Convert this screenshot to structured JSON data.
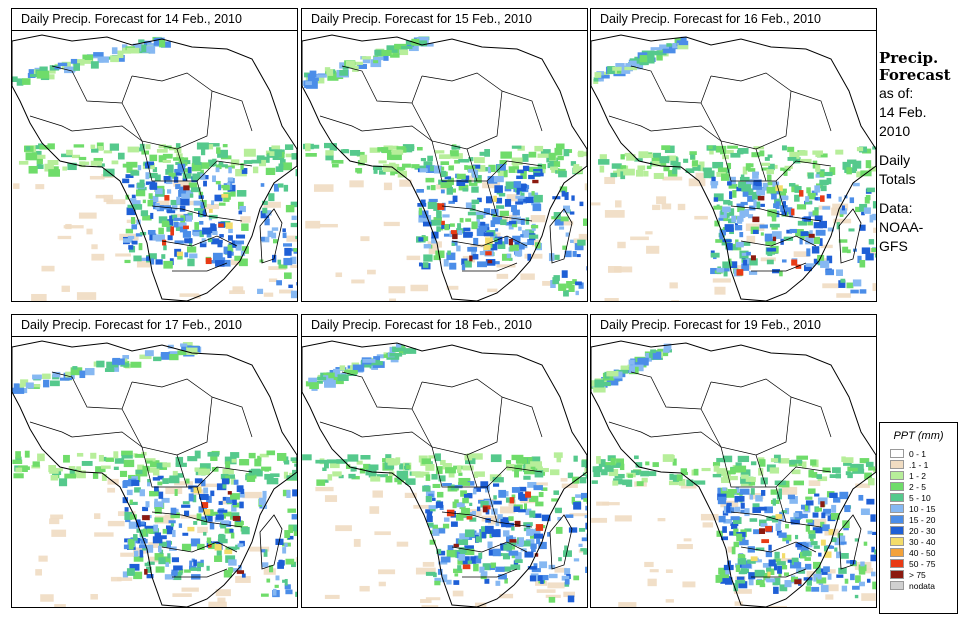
{
  "panels": [
    {
      "title": "Daily Precip. Forecast for  14 Feb., 2010"
    },
    {
      "title": "Daily Precip. Forecast for  15 Feb., 2010"
    },
    {
      "title": "Daily Precip. Forecast for  16 Feb., 2010"
    },
    {
      "title": "Daily Precip. Forecast for  17 Feb., 2010"
    },
    {
      "title": "Daily Precip. Forecast for  18 Feb., 2010"
    },
    {
      "title": "Daily Precip. Forecast for  19 Feb., 2010"
    }
  ],
  "sidebar": {
    "heading_line1": "Precip.",
    "heading_line2": "Forecast",
    "asof_label": "as of:",
    "date_line1": "14 Feb.",
    "date_line2": "2010",
    "totals_line1": "Daily",
    "totals_line2": "Totals",
    "data_label": "Data:",
    "source_line1": "NOAA-",
    "source_line2": "GFS"
  },
  "legend": {
    "title": "PPT (mm)",
    "items": [
      {
        "label": "0 - 1",
        "color": "#ffffff"
      },
      {
        "label": ".1 - 1",
        "color": "#f0dcc2"
      },
      {
        "label": "1 - 2",
        "color": "#b7ee9a"
      },
      {
        "label": "2 - 5",
        "color": "#6fdc6a"
      },
      {
        "label": "5 - 10",
        "color": "#55c98c"
      },
      {
        "label": "10 - 15",
        "color": "#86b8f2"
      },
      {
        "label": "15 - 20",
        "color": "#4b8de8"
      },
      {
        "label": "20 - 30",
        "color": "#1e5fd6"
      },
      {
        "label": "30 - 40",
        "color": "#f3dc6a"
      },
      {
        "label": "40 - 50",
        "color": "#f3a23a"
      },
      {
        "label": "50 - 75",
        "color": "#e83a14"
      },
      {
        "label": "> 75",
        "color": "#8c1a10"
      },
      {
        "label": "nodata",
        "color": "#d0d0d0"
      }
    ]
  }
}
